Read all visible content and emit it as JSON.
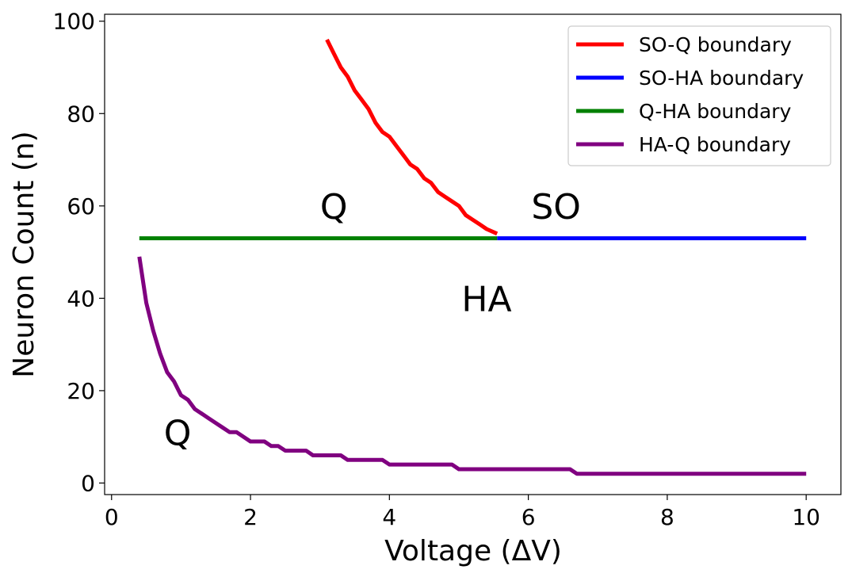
{
  "chart_data": {
    "type": "line",
    "xlabel": "Voltage (ΔV)",
    "ylabel": "Neuron Count (n)",
    "xlim": [
      -0.1,
      10.5
    ],
    "ylim": [
      -2.5,
      101.5
    ],
    "xticks": [
      0,
      2,
      4,
      6,
      8,
      10
    ],
    "yticks": [
      0,
      20,
      40,
      60,
      80,
      100
    ],
    "grid": false,
    "legend_position": "top-right",
    "series": [
      {
        "name": "SO-Q boundary",
        "color": "#ff0000",
        "x": [
          3.1,
          3.2,
          3.3,
          3.4,
          3.5,
          3.6,
          3.7,
          3.8,
          3.9,
          4.0,
          4.1,
          4.2,
          4.3,
          4.4,
          4.5,
          4.6,
          4.7,
          4.8,
          4.9,
          5.0,
          5.1,
          5.2,
          5.3,
          5.4,
          5.55
        ],
        "y": [
          96,
          93,
          90,
          88,
          85,
          83,
          81,
          78,
          76,
          75,
          73,
          71,
          69,
          68,
          66,
          65,
          63,
          62,
          61,
          60,
          58,
          57,
          56,
          55,
          54
        ]
      },
      {
        "name": "SO-HA boundary",
        "color": "#0000ff",
        "x": [
          5.55,
          10.0
        ],
        "y": [
          53,
          53
        ]
      },
      {
        "name": "Q-HA boundary",
        "color": "#008000",
        "x": [
          0.4,
          5.55
        ],
        "y": [
          53,
          53
        ]
      },
      {
        "name": "HA-Q boundary",
        "color": "#800080",
        "x": [
          0.4,
          0.5,
          0.6,
          0.7,
          0.8,
          0.9,
          1.0,
          1.1,
          1.2,
          1.3,
          1.4,
          1.5,
          1.6,
          1.7,
          1.8,
          1.9,
          2.0,
          2.1,
          2.2,
          2.3,
          2.4,
          2.5,
          2.6,
          2.7,
          2.8,
          2.9,
          3.0,
          3.1,
          3.2,
          3.3,
          3.4,
          3.5,
          3.6,
          3.7,
          3.8,
          3.9,
          4.0,
          4.5,
          4.9,
          5.0,
          5.5,
          6.0,
          6.5,
          6.6,
          6.7,
          7.0,
          8.0,
          9.0,
          10.0
        ],
        "y": [
          49,
          39,
          33,
          28,
          24,
          22,
          19,
          18,
          16,
          15,
          14,
          13,
          12,
          11,
          11,
          10,
          9,
          9,
          9,
          8,
          8,
          7,
          7,
          7,
          7,
          6,
          6,
          6,
          6,
          6,
          5,
          5,
          5,
          5,
          5,
          5,
          4,
          4,
          4,
          3,
          3,
          3,
          3,
          3,
          2,
          2,
          2,
          2,
          2
        ]
      }
    ],
    "annotations": [
      {
        "text": "Q",
        "x": 3.2,
        "y": 60
      },
      {
        "text": "SO",
        "x": 6.4,
        "y": 60
      },
      {
        "text": "HA",
        "x": 5.4,
        "y": 40
      },
      {
        "text": "Q",
        "x": 0.95,
        "y": 11
      }
    ]
  }
}
